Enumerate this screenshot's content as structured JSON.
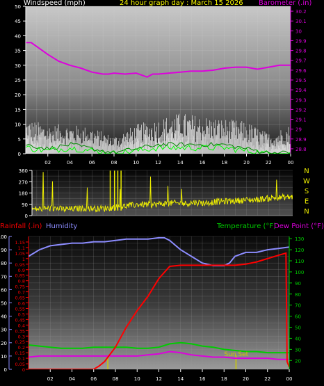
{
  "header": {
    "windspeed_label": "Windspeed (mph)",
    "title": "24 hour graph day : March 15 2026",
    "barometer_label": "Barometer (.in)"
  },
  "colors": {
    "wind_avg": "#ffffff",
    "wind_gust": "#00dd00",
    "wind_lull": "#00ff00",
    "barometer": "#dd00dd",
    "direction": "#eeee00",
    "rain": "#ff0000",
    "humidity": "#8c8cff",
    "temperature": "#00cc00",
    "dewpoint": "#dd00dd",
    "sun_marker": "#cccc00"
  },
  "bottom_header": {
    "rainfall_label": "Rainfall (.in)",
    "humidity_label": "Humidity",
    "temperature_label": "Temperature (°F)",
    "dewpoint_label": "Dew Point (°F)",
    "sunset_label": "Sun Set"
  },
  "chart_data": [
    {
      "type": "line",
      "name": "wind-barometer",
      "x_ticks": [
        "02",
        "04",
        "06",
        "08",
        "10",
        "12",
        "14",
        "16",
        "18",
        "20",
        "22",
        "00"
      ],
      "xlim": [
        0,
        24
      ],
      "wind_ylim": [
        0,
        50
      ],
      "wind_ticks": [
        0,
        5,
        10,
        15,
        20,
        25,
        30,
        35,
        40,
        45,
        50
      ],
      "baro_ylim": [
        28.75,
        30.25
      ],
      "baro_ticks": [
        "28.8",
        "28.9",
        "29",
        "29.1",
        "29.2",
        "29.3",
        "29.4",
        "29.5",
        "29.6",
        "29.7",
        "29.8",
        "29.9",
        "30",
        "30.1",
        "30.2"
      ],
      "barometer": {
        "x": [
          0,
          0.5,
          1,
          2,
          3,
          4,
          5,
          6,
          7,
          7.5,
          8,
          9,
          10,
          10.5,
          11,
          11.5,
          12,
          13,
          14,
          15,
          16,
          17,
          18,
          19,
          20,
          21,
          22,
          23,
          24
        ],
        "y": [
          29.88,
          29.88,
          29.84,
          29.76,
          29.69,
          29.65,
          29.62,
          29.58,
          29.56,
          29.56,
          29.57,
          29.56,
          29.57,
          29.55,
          29.53,
          29.56,
          29.56,
          29.57,
          29.58,
          29.59,
          29.59,
          29.6,
          29.62,
          29.63,
          29.63,
          29.61,
          29.63,
          29.65,
          29.65
        ]
      },
      "wind_avg_envelope": {
        "x": [
          0,
          2,
          4,
          6,
          8,
          10,
          12,
          14,
          16,
          18,
          20,
          22,
          24
        ],
        "y": [
          7,
          6,
          6,
          6,
          3,
          6,
          7,
          8,
          7,
          7,
          6,
          4,
          5
        ]
      },
      "wind_gust_envelope": {
        "x": [
          0,
          2,
          4,
          6,
          8,
          10,
          12,
          14,
          16,
          18,
          20,
          22,
          24
        ],
        "y": [
          12,
          10,
          10,
          9,
          6,
          10,
          12,
          14,
          13,
          12,
          11,
          7,
          10
        ]
      },
      "wind_lull": {
        "x": [
          0,
          2,
          4,
          6,
          8,
          10,
          12,
          14,
          16,
          18,
          20,
          22,
          24
        ],
        "y": [
          2,
          1,
          2,
          1,
          0,
          1,
          2,
          2,
          2,
          2,
          1,
          0,
          0
        ]
      }
    },
    {
      "type": "scatter",
      "name": "wind-direction",
      "x_ticks": [
        "02",
        "04",
        "06",
        "08",
        "10",
        "12",
        "14",
        "16",
        "18",
        "20",
        "22",
        "00"
      ],
      "xlim": [
        0,
        24
      ],
      "ylim": [
        0,
        360
      ],
      "y_ticks": [
        0,
        45,
        90,
        135,
        180,
        225,
        270,
        315,
        360
      ],
      "compass_labels": [
        "N",
        "W",
        "S",
        "E",
        "N"
      ],
      "direction": {
        "x": [
          0,
          1,
          2,
          3,
          4,
          5,
          6,
          7,
          8,
          9,
          10,
          11,
          12,
          13,
          14,
          15,
          16,
          17,
          18,
          19,
          20,
          21,
          22,
          23,
          24
        ],
        "y": [
          50,
          55,
          60,
          50,
          55,
          60,
          55,
          60,
          70,
          80,
          90,
          85,
          95,
          100,
          95,
          105,
          100,
          110,
          115,
          120,
          125,
          130,
          140,
          145,
          150
        ]
      }
    },
    {
      "type": "line",
      "name": "rain-humidity-temperature",
      "x_ticks": [
        "02",
        "04",
        "06",
        "08",
        "10",
        "12",
        "14",
        "16",
        "18",
        "20",
        "22",
        "00"
      ],
      "xlim": [
        0,
        24
      ],
      "humidity_ylim": [
        0,
        100
      ],
      "humidity_ticks": [
        0,
        10,
        20,
        30,
        40,
        50,
        60,
        70,
        80,
        90,
        100
      ],
      "rain_ylim": [
        0,
        1.2
      ],
      "rain_ticks": [
        "0",
        "0.05",
        "0.1",
        "0.15",
        "0.2",
        "0.25",
        "0.3",
        "0.35",
        "0.4",
        "0.45",
        "0.5",
        "0.55",
        "0.6",
        "0.65",
        "0.7",
        "0.75",
        "0.8",
        "0.85",
        "0.9",
        "0.95",
        "1",
        "1.05",
        "1.1",
        "1.15"
      ],
      "temp_ylim": [
        12,
        132
      ],
      "temp_ticks": [
        20,
        30,
        40,
        50,
        60,
        70,
        80,
        90,
        100,
        110,
        120,
        130
      ],
      "humidity": {
        "x": [
          0,
          1,
          2,
          3,
          4,
          5,
          6,
          7,
          8,
          9,
          10,
          11,
          12,
          12.5,
          13,
          14,
          15,
          16,
          17,
          18,
          18.5,
          19,
          20,
          21,
          22,
          23,
          24
        ],
        "y": [
          85,
          90,
          93,
          94,
          95,
          95,
          96,
          96,
          97,
          98,
          98,
          98,
          99,
          99,
          97,
          90,
          85,
          80,
          78,
          78,
          80,
          85,
          88,
          88,
          90,
          91,
          92
        ]
      },
      "rain": {
        "x": [
          0,
          6,
          6.5,
          7,
          8,
          9,
          10,
          11,
          12,
          13,
          14,
          15,
          16,
          17,
          18,
          19,
          20,
          21,
          22,
          23,
          23.7,
          23.8,
          24
        ],
        "y": [
          0,
          0,
          0.03,
          0.07,
          0.2,
          0.38,
          0.53,
          0.66,
          0.82,
          0.93,
          0.94,
          0.94,
          0.94,
          0.94,
          0.94,
          0.94,
          0.95,
          0.97,
          1.0,
          1.03,
          1.05,
          0.07,
          0.02
        ]
      },
      "temperature": {
        "x": [
          0,
          1,
          2,
          3,
          4,
          5,
          6,
          7,
          8,
          9,
          10,
          11,
          12,
          13,
          14,
          15,
          16,
          17,
          18,
          19,
          20,
          21,
          22,
          23,
          24
        ],
        "y": [
          34,
          33,
          32,
          31,
          31,
          31,
          32,
          32,
          32,
          32,
          31,
          31,
          32,
          35,
          36,
          35,
          33,
          32,
          30,
          29,
          28,
          28,
          27,
          27,
          27
        ]
      },
      "dewpoint": {
        "x": [
          0,
          1,
          2,
          3,
          4,
          5,
          6,
          7,
          8,
          9,
          10,
          11,
          12,
          13,
          14,
          15,
          16,
          17,
          18,
          19,
          20,
          21,
          22,
          23,
          24
        ],
        "y": [
          23,
          24,
          24,
          24,
          24,
          24,
          24,
          24,
          24,
          24,
          24,
          25,
          26,
          28,
          27,
          25,
          24,
          23,
          23,
          22,
          22,
          22,
          22,
          21,
          21
        ]
      },
      "markers": [
        {
          "x": 7.3,
          "label": ""
        },
        {
          "x": 19.1,
          "label": "Sun Set"
        }
      ]
    }
  ]
}
